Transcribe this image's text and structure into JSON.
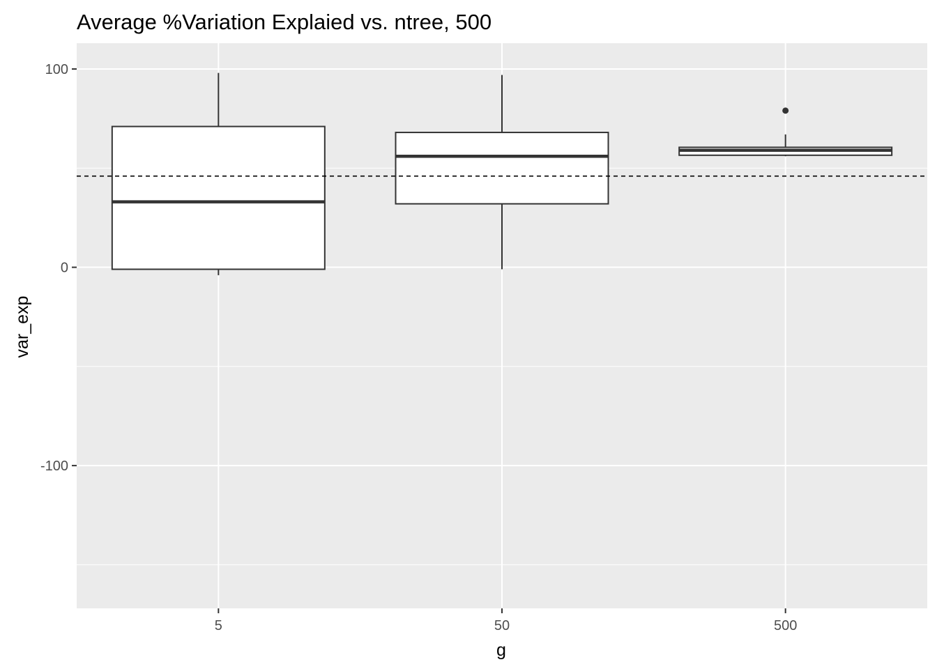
{
  "chart_data": {
    "type": "boxplot",
    "title": "Average %Variation Explaied vs. ntree, 500",
    "xlabel": "g",
    "ylabel": "var_exp",
    "categories": [
      "5",
      "50",
      "500"
    ],
    "ylim": [
      -172,
      113
    ],
    "y_ticks": [
      100,
      0,
      -100
    ],
    "y_tick_labels": [
      "100",
      "0",
      "-100"
    ],
    "grid": true,
    "panel_background": "#EBEBEB",
    "box_fill": "#FFFFFF",
    "box_stroke": "#333333",
    "boxes": [
      {
        "category": "5",
        "whisker_low": -4,
        "q1": -1,
        "median": 33,
        "q3": 71,
        "whisker_high": 98,
        "outliers": []
      },
      {
        "category": "50",
        "whisker_low": -1,
        "q1": 32,
        "median": 56,
        "q3": 68,
        "whisker_high": 97,
        "outliers": []
      },
      {
        "category": "500",
        "whisker_low": 56,
        "q1": 56.5,
        "median": 59,
        "q3": 60.5,
        "whisker_high": 67,
        "outliers": [
          79
        ]
      }
    ],
    "reference_line": {
      "y": 46,
      "style": "dashed"
    }
  }
}
